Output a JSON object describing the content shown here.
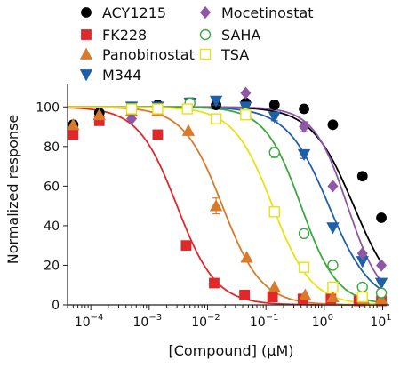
{
  "chart_data": {
    "type": "scatter",
    "xlabel": "[Compound] (μM)",
    "ylabel": "Normalized response",
    "x_scale": "log",
    "xlim": [
      4e-05,
      13
    ],
    "ylim": [
      0,
      110
    ],
    "x_ticks": [
      {
        "value": 0.0001,
        "base": "10",
        "exp": "−4"
      },
      {
        "value": 0.001,
        "base": "10",
        "exp": "−3"
      },
      {
        "value": 0.01,
        "base": "10",
        "exp": "−2"
      },
      {
        "value": 0.1,
        "base": "10",
        "exp": "−1"
      },
      {
        "value": 1,
        "base": "10",
        "exp": "0"
      },
      {
        "value": 10,
        "base": "10",
        "exp": "1"
      }
    ],
    "y_ticks": [
      0,
      20,
      40,
      60,
      80,
      100
    ],
    "grid": false,
    "legend_position": "top",
    "series": [
      {
        "name": "ACY1215",
        "color": "#000000",
        "marker": "circle-filled",
        "ic50": 3.2,
        "hill": 1.2,
        "x": [
          5e-05,
          0.00014,
          0.0005,
          0.0014,
          0.005,
          0.014,
          0.045,
          0.14,
          0.45,
          1.4,
          4.5,
          9.5
        ],
        "y": [
          91,
          97,
          100,
          101,
          102,
          101,
          102,
          101,
          99,
          91,
          65,
          44
        ],
        "err": [
          2,
          1.5,
          1.5,
          1.5,
          1.5,
          2,
          1.5,
          2,
          1.5,
          1.5,
          1.5,
          1.5
        ]
      },
      {
        "name": "FK228",
        "color": "#e0282a",
        "marker": "square-filled",
        "ic50": 0.003,
        "hill": 1.3,
        "x": [
          5e-05,
          0.00014,
          0.0014,
          0.0043,
          0.013,
          0.043,
          0.13,
          0.43,
          1.3,
          3.9,
          9.5
        ],
        "y": [
          86,
          93,
          86,
          30,
          11,
          5,
          4,
          3,
          3,
          2,
          2
        ],
        "err": [
          0,
          0,
          0,
          0,
          0,
          0,
          0,
          0,
          0,
          0,
          0
        ]
      },
      {
        "name": "Panobinostat",
        "color": "#d97a2b",
        "marker": "triangle-up-filled",
        "ic50": 0.018,
        "hill": 1.3,
        "x": [
          5e-05,
          0.00014,
          0.0005,
          0.0014,
          0.0047,
          0.014,
          0.047,
          0.14,
          0.47,
          1.4,
          4.7,
          9.5
        ],
        "y": [
          91,
          96,
          98,
          98,
          88,
          50,
          24,
          9,
          5,
          4,
          3,
          3
        ],
        "err": [
          0,
          0,
          0,
          0,
          0,
          4,
          0,
          0,
          0,
          0,
          0,
          0
        ]
      },
      {
        "name": "M344",
        "color": "#1f5fa8",
        "marker": "triangle-down-filled",
        "ic50": 1.2,
        "hill": 1.2,
        "x": [
          0.0005,
          0.0014,
          0.005,
          0.014,
          0.045,
          0.14,
          0.45,
          1.4,
          4.5,
          9.5
        ],
        "y": [
          100,
          100,
          102,
          103,
          100,
          95,
          76,
          39,
          22,
          11
        ],
        "err": [
          1.5,
          1.5,
          2.5,
          2,
          1.5,
          2,
          2,
          0,
          0,
          0
        ]
      },
      {
        "name": "Mocetinostat",
        "color": "#8e58a6",
        "marker": "diamond-filled",
        "ic50": 2.5,
        "hill": 1.5,
        "x": [
          0.0005,
          0.005,
          0.045,
          0.45,
          1.4,
          4.5,
          9.5
        ],
        "y": [
          94,
          101,
          107,
          90,
          60,
          26,
          20
        ],
        "err": [
          0,
          0,
          0,
          2.5,
          0,
          0,
          0
        ]
      },
      {
        "name": "SAHA",
        "color": "#3aa83f",
        "marker": "circle-open",
        "ic50": 0.4,
        "hill": 1.4,
        "x": [
          0.0005,
          0.005,
          0.045,
          0.14,
          0.45,
          1.4,
          4.5,
          9.5
        ],
        "y": [
          99,
          102,
          97,
          77,
          36,
          20,
          9,
          6
        ],
        "err": [
          0,
          0,
          0,
          2.5,
          0,
          0,
          0,
          0
        ]
      },
      {
        "name": "TSA",
        "color": "#e8e212",
        "marker": "square-open",
        "ic50": 0.13,
        "hill": 1.3,
        "x": [
          0.0005,
          0.0014,
          0.0045,
          0.014,
          0.045,
          0.14,
          0.45,
          1.4,
          4.5
        ],
        "y": [
          99,
          99,
          99,
          94,
          96,
          47,
          19,
          9,
          4
        ],
        "err": [
          0,
          0,
          0,
          0,
          0,
          0,
          0,
          0,
          0
        ]
      }
    ]
  }
}
